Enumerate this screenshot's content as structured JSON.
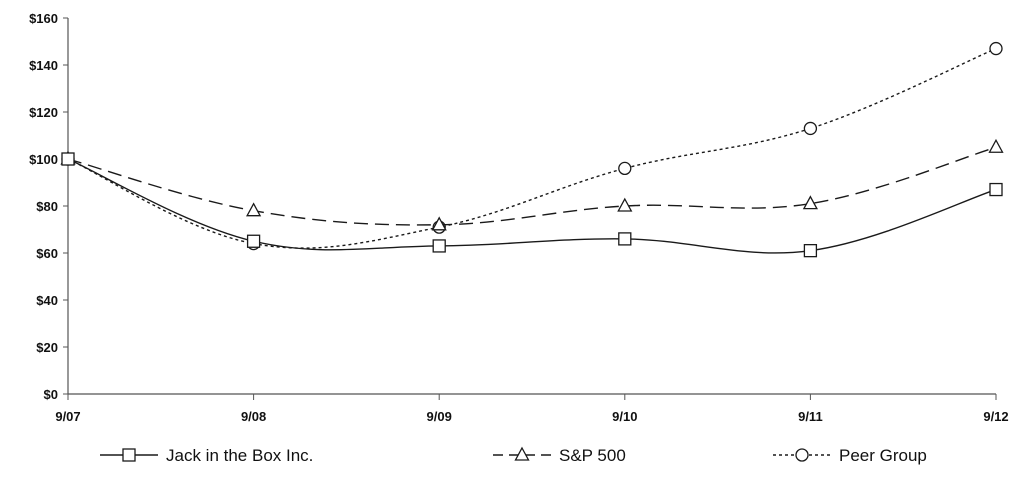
{
  "chart_data": {
    "type": "line",
    "title": "",
    "xlabel": "",
    "ylabel": "",
    "categories": [
      "9/07",
      "9/08",
      "9/09",
      "9/10",
      "9/11",
      "9/12"
    ],
    "ylim": [
      0,
      160
    ],
    "y_ticks": [
      "$0",
      "$20",
      "$40",
      "$60",
      "$80",
      "$100",
      "$120",
      "$140",
      "$160"
    ],
    "y_tick_values": [
      0,
      20,
      40,
      60,
      80,
      100,
      120,
      140,
      160
    ],
    "grid": false,
    "legend_position": "bottom",
    "series": [
      {
        "name": "Jack in the Box Inc.",
        "values": [
          100,
          65,
          63,
          66,
          61,
          87
        ],
        "marker": "square",
        "dash": "solid"
      },
      {
        "name": "S&P 500",
        "values": [
          100,
          78,
          72,
          80,
          81,
          105
        ],
        "marker": "triangle",
        "dash": "dashed"
      },
      {
        "name": "Peer Group",
        "values": [
          100,
          64,
          71,
          96,
          113,
          147
        ],
        "marker": "circle",
        "dash": "dotted"
      }
    ]
  },
  "colors": {
    "line": "#1a1a1a",
    "axis": "#555555"
  }
}
